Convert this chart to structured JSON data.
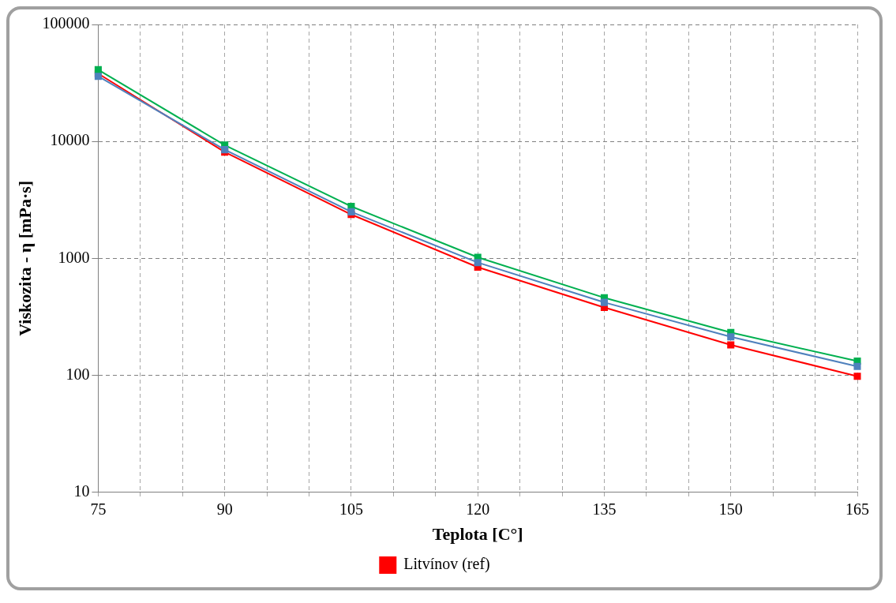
{
  "chart_data": {
    "type": "line",
    "xlabel": "Teplota [C°]",
    "ylabel": "Viskozita - η [mPa·s]",
    "x": [
      75,
      90,
      105,
      120,
      135,
      150,
      165
    ],
    "series": [
      {
        "color": "#4f81bd",
        "values": [
          36000,
          8500,
          2500,
          920,
          420,
          213,
          119
        ]
      },
      {
        "color": "#00b050",
        "values": [
          41000,
          9300,
          2780,
          1020,
          460,
          232,
          132
        ]
      },
      {
        "name": "Litvínov (ref)",
        "color": "#ff0000",
        "values": [
          38000,
          8100,
          2370,
          840,
          380,
          182,
          98
        ]
      }
    ],
    "xlim": [
      75,
      165
    ],
    "xticks": [
      75,
      {
        "value": 80,
        "label": null
      },
      {
        "value": 85,
        "label": null
      },
      90,
      {
        "value": 95,
        "label": null
      },
      {
        "value": 100,
        "label": null
      },
      105,
      {
        "value": 110,
        "label": null
      },
      {
        "value": 115,
        "label": null
      },
      120,
      {
        "value": 125,
        "label": null
      },
      {
        "value": 130,
        "label": null
      },
      135,
      {
        "value": 140,
        "label": null
      },
      {
        "value": 145,
        "label": null
      },
      150,
      {
        "value": 155,
        "label": null
      },
      {
        "value": 160,
        "label": null
      },
      165
    ],
    "ylim": [
      10,
      100000
    ],
    "yticks": [
      10,
      100,
      1000,
      10000,
      100000
    ],
    "log": "y",
    "grid": true,
    "legend": "bottom",
    "marker": "square",
    "line_style": "solid"
  }
}
